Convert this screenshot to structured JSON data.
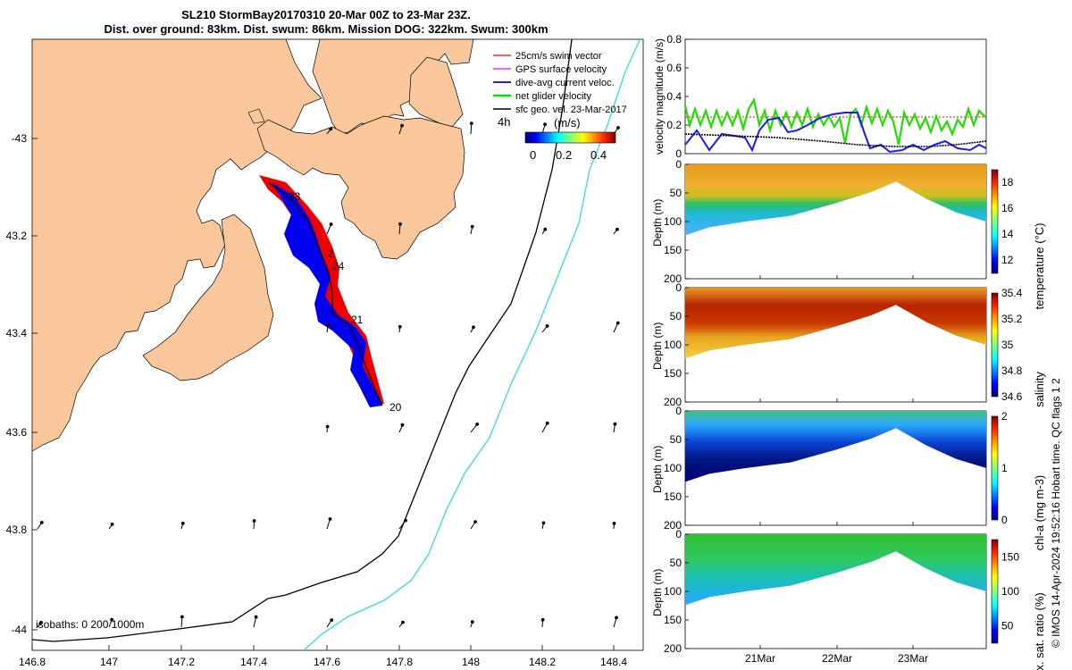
{
  "title_line1": "SL210 StormBay20170310 20-Mar 00Z to 23-Mar 23Z.",
  "title_line2": "Dist. over ground: 83km. Dist. swum: 86km. Mission DOG: 322km. Swum: 300km",
  "map": {
    "x_ticks": [
      "146.8",
      "147",
      "147.2",
      "147.4",
      "147.6",
      "147.8",
      "148",
      "148.2",
      "148.4"
    ],
    "y_ticks": [
      "-43",
      "43.2",
      "43.4",
      "43.6",
      "43.8",
      "-44"
    ],
    "legend": [
      {
        "label": "25cm/s swim vector",
        "color": "#ff0000"
      },
      {
        "label": "GPS surface velocity",
        "color": "#ff00ff"
      },
      {
        "label": "dive-avg current veloc.",
        "color": "#0000ff"
      },
      {
        "label": "net glider velocity",
        "color": "#00dd00"
      },
      {
        "label": "sfc geo. vel. 23-Mar-2017",
        "color": "#000000"
      }
    ],
    "legend_4h": "4h",
    "colorbar_unit": "(m/s)",
    "colorbar_ticks": [
      "0",
      "0.2",
      "0.4"
    ],
    "day_labels": [
      "23",
      "2",
      "24",
      "21",
      "20"
    ],
    "isobaths_label": "isobaths: 0   200  1000m",
    "land_color": "#f9c79b",
    "isobath_200_color": "#000000",
    "isobath_1000_color": "#33dddd"
  },
  "velocity_panel": {
    "ylabel": "velocity magnitude (m/s)",
    "y_ticks": [
      "0",
      "0.2",
      "0.4",
      "0.6",
      "0.8"
    ]
  },
  "depth_panels": [
    {
      "cbar_label": "temperature (°C)",
      "cbar_ticks": [
        "18",
        "16",
        "14",
        "12"
      ]
    },
    {
      "cbar_label": "salinity",
      "cbar_ticks": [
        "35.4",
        "35.2",
        "35",
        "34.8",
        "34.6"
      ]
    },
    {
      "cbar_label": "chl-a (mg m-3)",
      "cbar_ticks": [
        "2",
        "1",
        "0"
      ]
    },
    {
      "cbar_label": "Ox. sat. ratio (%)",
      "cbar_ticks": [
        "150",
        "100",
        "50"
      ]
    }
  ],
  "depth_axis": {
    "label": "Depth (m)",
    "ticks": [
      "0",
      "50",
      "100",
      "150",
      "200"
    ]
  },
  "time_ticks": [
    "21Mar",
    "22Mar",
    "23Mar"
  ],
  "footer": "© IMOS 14-Apr-2024 19:52:16 Hobart time. QC flags 1  2",
  "chart_data": {
    "type": "scatter",
    "title": "SL210 StormBay20170310 20-Mar 00Z to 23-Mar 23Z.",
    "xlim": [
      146.77,
      148.5
    ],
    "ylim": [
      -44.05,
      -42.8
    ],
    "glider_track_day_labels": [
      {
        "label": "20",
        "lon": 147.76,
        "lat": -43.55
      },
      {
        "label": "21",
        "lon": 147.67,
        "lat": -43.38
      },
      {
        "label": "2",
        "lon": 147.6,
        "lat": -43.24
      },
      {
        "label": "24",
        "lon": 147.6,
        "lat": -43.29
      },
      {
        "label": "23",
        "lon": 147.51,
        "lat": -43.12
      }
    ],
    "velocity_series": [
      {
        "name": "net glider velocity",
        "approx_range": [
          0.1,
          0.35
        ]
      },
      {
        "name": "dive-avg current veloc.",
        "approx_range": [
          0.0,
          0.28
        ]
      },
      {
        "name": "sfc geo. vel. 23-Mar-2017",
        "approx_range": [
          0.05,
          0.14
        ]
      }
    ],
    "velocity_ylim": [
      0,
      0.8
    ],
    "depth_ylim": [
      0,
      200
    ],
    "colorbars": [
      {
        "name": "temperature (°C)",
        "range": [
          11,
          19
        ]
      },
      {
        "name": "salinity",
        "range": [
          34.6,
          35.4
        ]
      },
      {
        "name": "chl-a (mg m-3)",
        "range": [
          0,
          2
        ]
      },
      {
        "name": "Ox. sat. ratio (%)",
        "range": [
          25,
          175
        ]
      }
    ]
  }
}
